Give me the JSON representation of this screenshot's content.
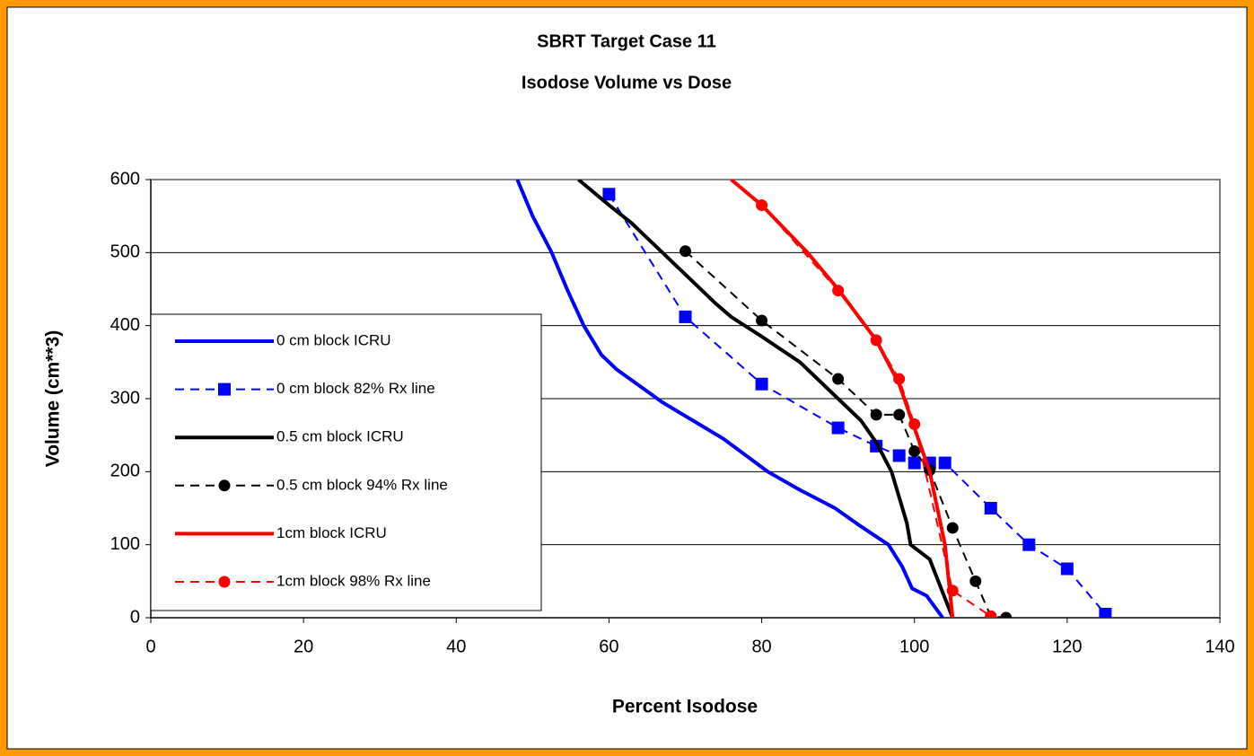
{
  "chart_data": {
    "type": "line",
    "title": [
      "SBRT Target Case 11",
      "Isodose Volume vs Dose"
    ],
    "x_label": "Percent Isodose",
    "y_label": "Volume (cm**3)",
    "xlim": [
      0,
      140
    ],
    "xticks": [
      0,
      20,
      40,
      60,
      80,
      100,
      120,
      140
    ],
    "ylim": [
      0,
      600
    ],
    "yticks": [
      0,
      100,
      200,
      300,
      400,
      500,
      600
    ],
    "grid": true,
    "legend": "left",
    "series": [
      {
        "name": "0 cm block ICRU",
        "color": "#0000ff",
        "dash": false,
        "marker": "none",
        "x": [
          48,
          50,
          52.5,
          54.5,
          56.7,
          59,
          61,
          63,
          65,
          67,
          71,
          75,
          80.8,
          85,
          89.6,
          93,
          96.6,
          98.4,
          99.7,
          101.6,
          103.7
        ],
        "values": [
          600,
          550,
          500,
          450,
          400,
          360,
          340,
          325,
          310,
          295,
          270,
          245,
          200,
          175,
          150,
          125,
          100,
          70,
          40,
          30,
          0
        ]
      },
      {
        "name": "0 cm block 82% Rx line",
        "color": "#0000ff",
        "dash": true,
        "marker": "square",
        "x": [
          60,
          70,
          80,
          90,
          95,
          98,
          100,
          102,
          104,
          110,
          115,
          120,
          125
        ],
        "values": [
          580,
          412,
          320,
          260,
          235,
          222,
          212,
          212,
          212,
          150,
          100,
          67,
          5
        ]
      },
      {
        "name": "0.5 cm block ICRU",
        "color": "#000000",
        "dash": false,
        "marker": "none",
        "x": [
          56,
          60,
          63,
          66,
          70,
          74,
          76,
          80,
          85,
          90,
          93,
          95,
          97,
          98,
          99,
          99.5,
          102,
          103.5,
          105
        ],
        "values": [
          600,
          565,
          540,
          510,
          470,
          430,
          412,
          385,
          350,
          300,
          270,
          240,
          200,
          165,
          130,
          100,
          80,
          40,
          0
        ]
      },
      {
        "name": "0.5 cm block 94% Rx line",
        "color": "#000000",
        "dash": true,
        "marker": "circle",
        "x": [
          70,
          80,
          90,
          95,
          98,
          100,
          102,
          105,
          108,
          110,
          112
        ],
        "values": [
          502,
          407,
          327,
          278,
          278,
          228,
          202,
          123,
          50,
          2,
          0
        ]
      },
      {
        "name": "1cm block ICRU",
        "color": "#ff0000",
        "dash": false,
        "marker": "none",
        "x": [
          76,
          80,
          86,
          90,
          95,
          98,
          100,
          102,
          103,
          104,
          105
        ],
        "values": [
          600,
          565,
          500,
          450,
          380,
          320,
          260,
          200,
          150,
          100,
          0
        ]
      },
      {
        "name": "1cm block 98% Rx line",
        "color": "#ff0000",
        "dash": true,
        "marker": "circle",
        "x": [
          80,
          90,
          95,
          98,
          100,
          105,
          110
        ],
        "values": [
          565,
          448,
          380,
          327,
          265,
          37,
          2
        ]
      }
    ]
  }
}
